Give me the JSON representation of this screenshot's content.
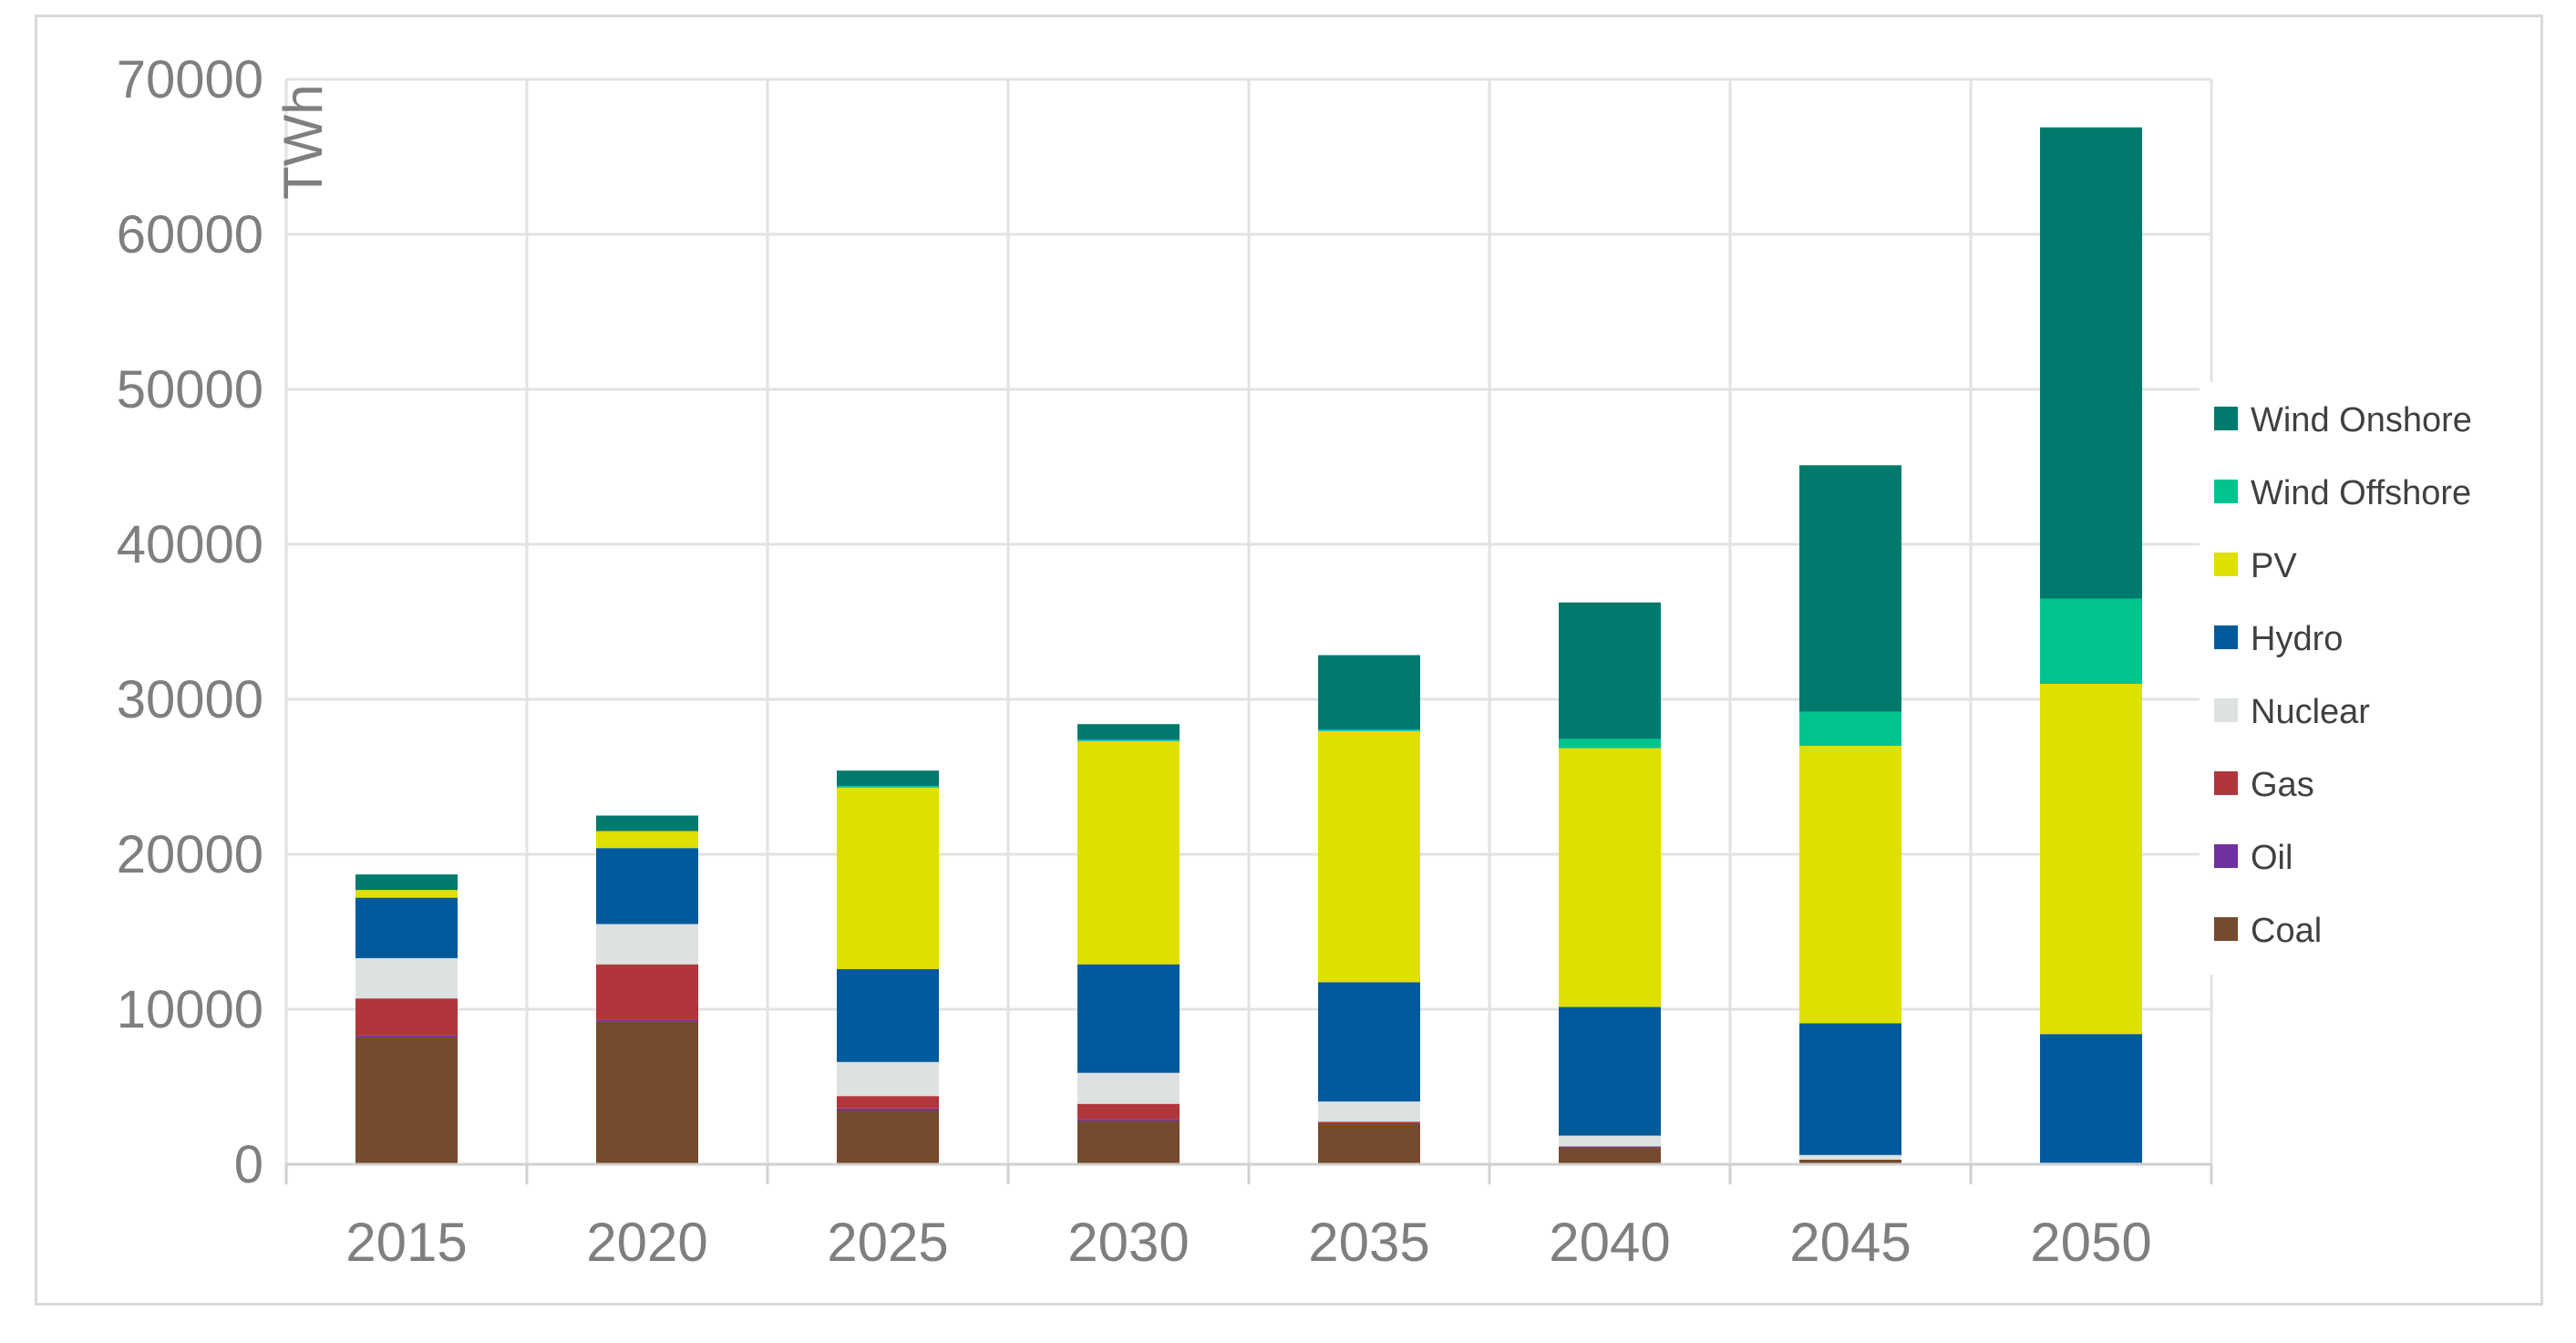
{
  "chart_data": {
    "type": "bar",
    "stacked": true,
    "title": "",
    "xlabel": "",
    "ylabel": "TWh",
    "ylim": [
      0,
      70000
    ],
    "yticks": [
      0,
      10000,
      20000,
      30000,
      40000,
      50000,
      60000,
      70000
    ],
    "ytick_labels": [
      "0",
      "10000",
      "20000",
      "30000",
      "40000",
      "50000",
      "60000",
      "70000"
    ],
    "grid": true,
    "legend_position": "right",
    "categories": [
      "2015",
      "2020",
      "2025",
      "2030",
      "2035",
      "2040",
      "2045",
      "2050"
    ],
    "series": [
      {
        "name": "Coal",
        "color": "#754a2f",
        "values": [
          8200,
          9200,
          3500,
          2800,
          2600,
          1100,
          300,
          0
        ]
      },
      {
        "name": "Oil",
        "color": "#7030a0",
        "values": [
          100,
          100,
          100,
          100,
          50,
          50,
          0,
          0
        ]
      },
      {
        "name": "Gas",
        "color": "#b0363b",
        "values": [
          2400,
          3600,
          800,
          1000,
          100,
          0,
          0,
          0
        ]
      },
      {
        "name": "Nuclear",
        "color": "#dde1e1",
        "values": [
          2600,
          2600,
          2200,
          2000,
          1300,
          700,
          300,
          100
        ]
      },
      {
        "name": "Hydro",
        "color": "#005a9c",
        "values": [
          3900,
          4900,
          6000,
          7000,
          7700,
          8300,
          8500,
          8300
        ]
      },
      {
        "name": "PV",
        "color": "#dfdf00",
        "values": [
          500,
          1100,
          11700,
          14400,
          16200,
          16700,
          17900,
          22600
        ]
      },
      {
        "name": "Wind Offshore",
        "color": "#00c48f",
        "values": [
          0,
          0,
          100,
          100,
          100,
          600,
          2200,
          5500
        ]
      },
      {
        "name": "Wind Onshore",
        "color": "#007a6c",
        "values": [
          1000,
          1000,
          1000,
          1000,
          4800,
          8800,
          15900,
          30400
        ]
      }
    ]
  }
}
